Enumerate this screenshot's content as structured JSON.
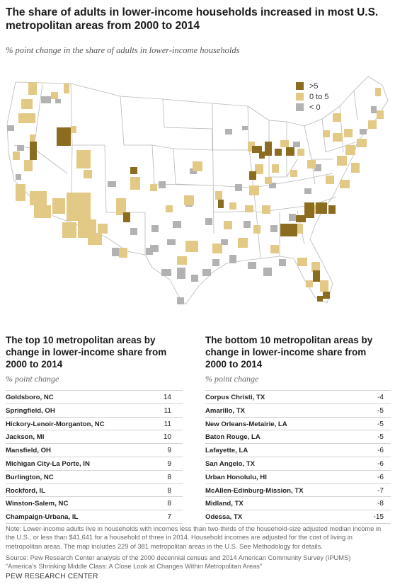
{
  "header": {
    "title": "The share of adults in lower-income households increased in most U.S. metropolitan areas from 2000 to 2014",
    "subtitle": "% point change in the share of adults in lower-income households"
  },
  "map_legend": [
    {
      "label": ">5",
      "color": "#8c6d1f"
    },
    {
      "label": "0 to 5",
      "color": "#e3c986"
    },
    {
      "label": "< 0",
      "color": "#b2b2b2"
    }
  ],
  "colors": {
    "state_fill": "#ffffff",
    "state_border": "#b9b9b9",
    "gt5": "#8c6d1f",
    "0to5": "#e3c986",
    "lt0": "#b2b2b2"
  },
  "chart_data": [
    {
      "type": "table",
      "title": "The top 10 metropolitan areas by change in lower-income share from 2000 to 2014",
      "unit_label": "% point change",
      "rows": [
        {
          "name": "Goldsboro, NC",
          "value": "14"
        },
        {
          "name": "Springfield, OH",
          "value": "11"
        },
        {
          "name": "Hickory-Lenoir-Morganton, NC",
          "value": "11"
        },
        {
          "name": "Jackson, MI",
          "value": "10"
        },
        {
          "name": "Mansfield, OH",
          "value": "9"
        },
        {
          "name": "Michigan City-La Porte, IN",
          "value": "9"
        },
        {
          "name": "Burlington, NC",
          "value": "8"
        },
        {
          "name": "Rockford, IL",
          "value": "8"
        },
        {
          "name": "Winston-Salem, NC",
          "value": "8"
        },
        {
          "name": "Champaign-Urbana, IL",
          "value": "7"
        }
      ]
    },
    {
      "type": "table",
      "title": "The bottom 10 metropolitan areas by change in lower-income share from 2000 to 2014",
      "unit_label": "% point change",
      "rows": [
        {
          "name": "Corpus Christi, TX",
          "value": "-4"
        },
        {
          "name": "Amarillo, TX",
          "value": "-5"
        },
        {
          "name": "New Orleans-Metairie, LA",
          "value": "-5"
        },
        {
          "name": "Baton Rouge, LA",
          "value": "-5"
        },
        {
          "name": "Lafayette, LA",
          "value": "-6"
        },
        {
          "name": "San Angelo, TX",
          "value": "-6"
        },
        {
          "name": "Urban Honolulu, HI",
          "value": "-6"
        },
        {
          "name": "McAllen-Edinburg-Mission, TX",
          "value": "-7"
        },
        {
          "name": "Midland, TX",
          "value": "-8"
        },
        {
          "name": "Odessa, TX",
          "value": "-15"
        }
      ]
    }
  ],
  "footer": {
    "note": "Note: Lower-income adults live in households with incomes less than two-thirds of the household-size adjusted median income in the U.S., or less than $41,641 for a household of three in 2014. Household incomes are adjusted for the cost of living in metropolitan areas. The map includes 229 of 381 metropolitan areas in the U.S. See Methodology for details.",
    "source": "Source: Pew Research Center analysis of the 2000 decennial census and 2014 American Community Survey (IPUMS)",
    "report": "“America’s Shrinking Middle Class: A Close Look at Changes Within Metropolitan Areas”",
    "brand": "PEW RESEARCH CENTER"
  }
}
